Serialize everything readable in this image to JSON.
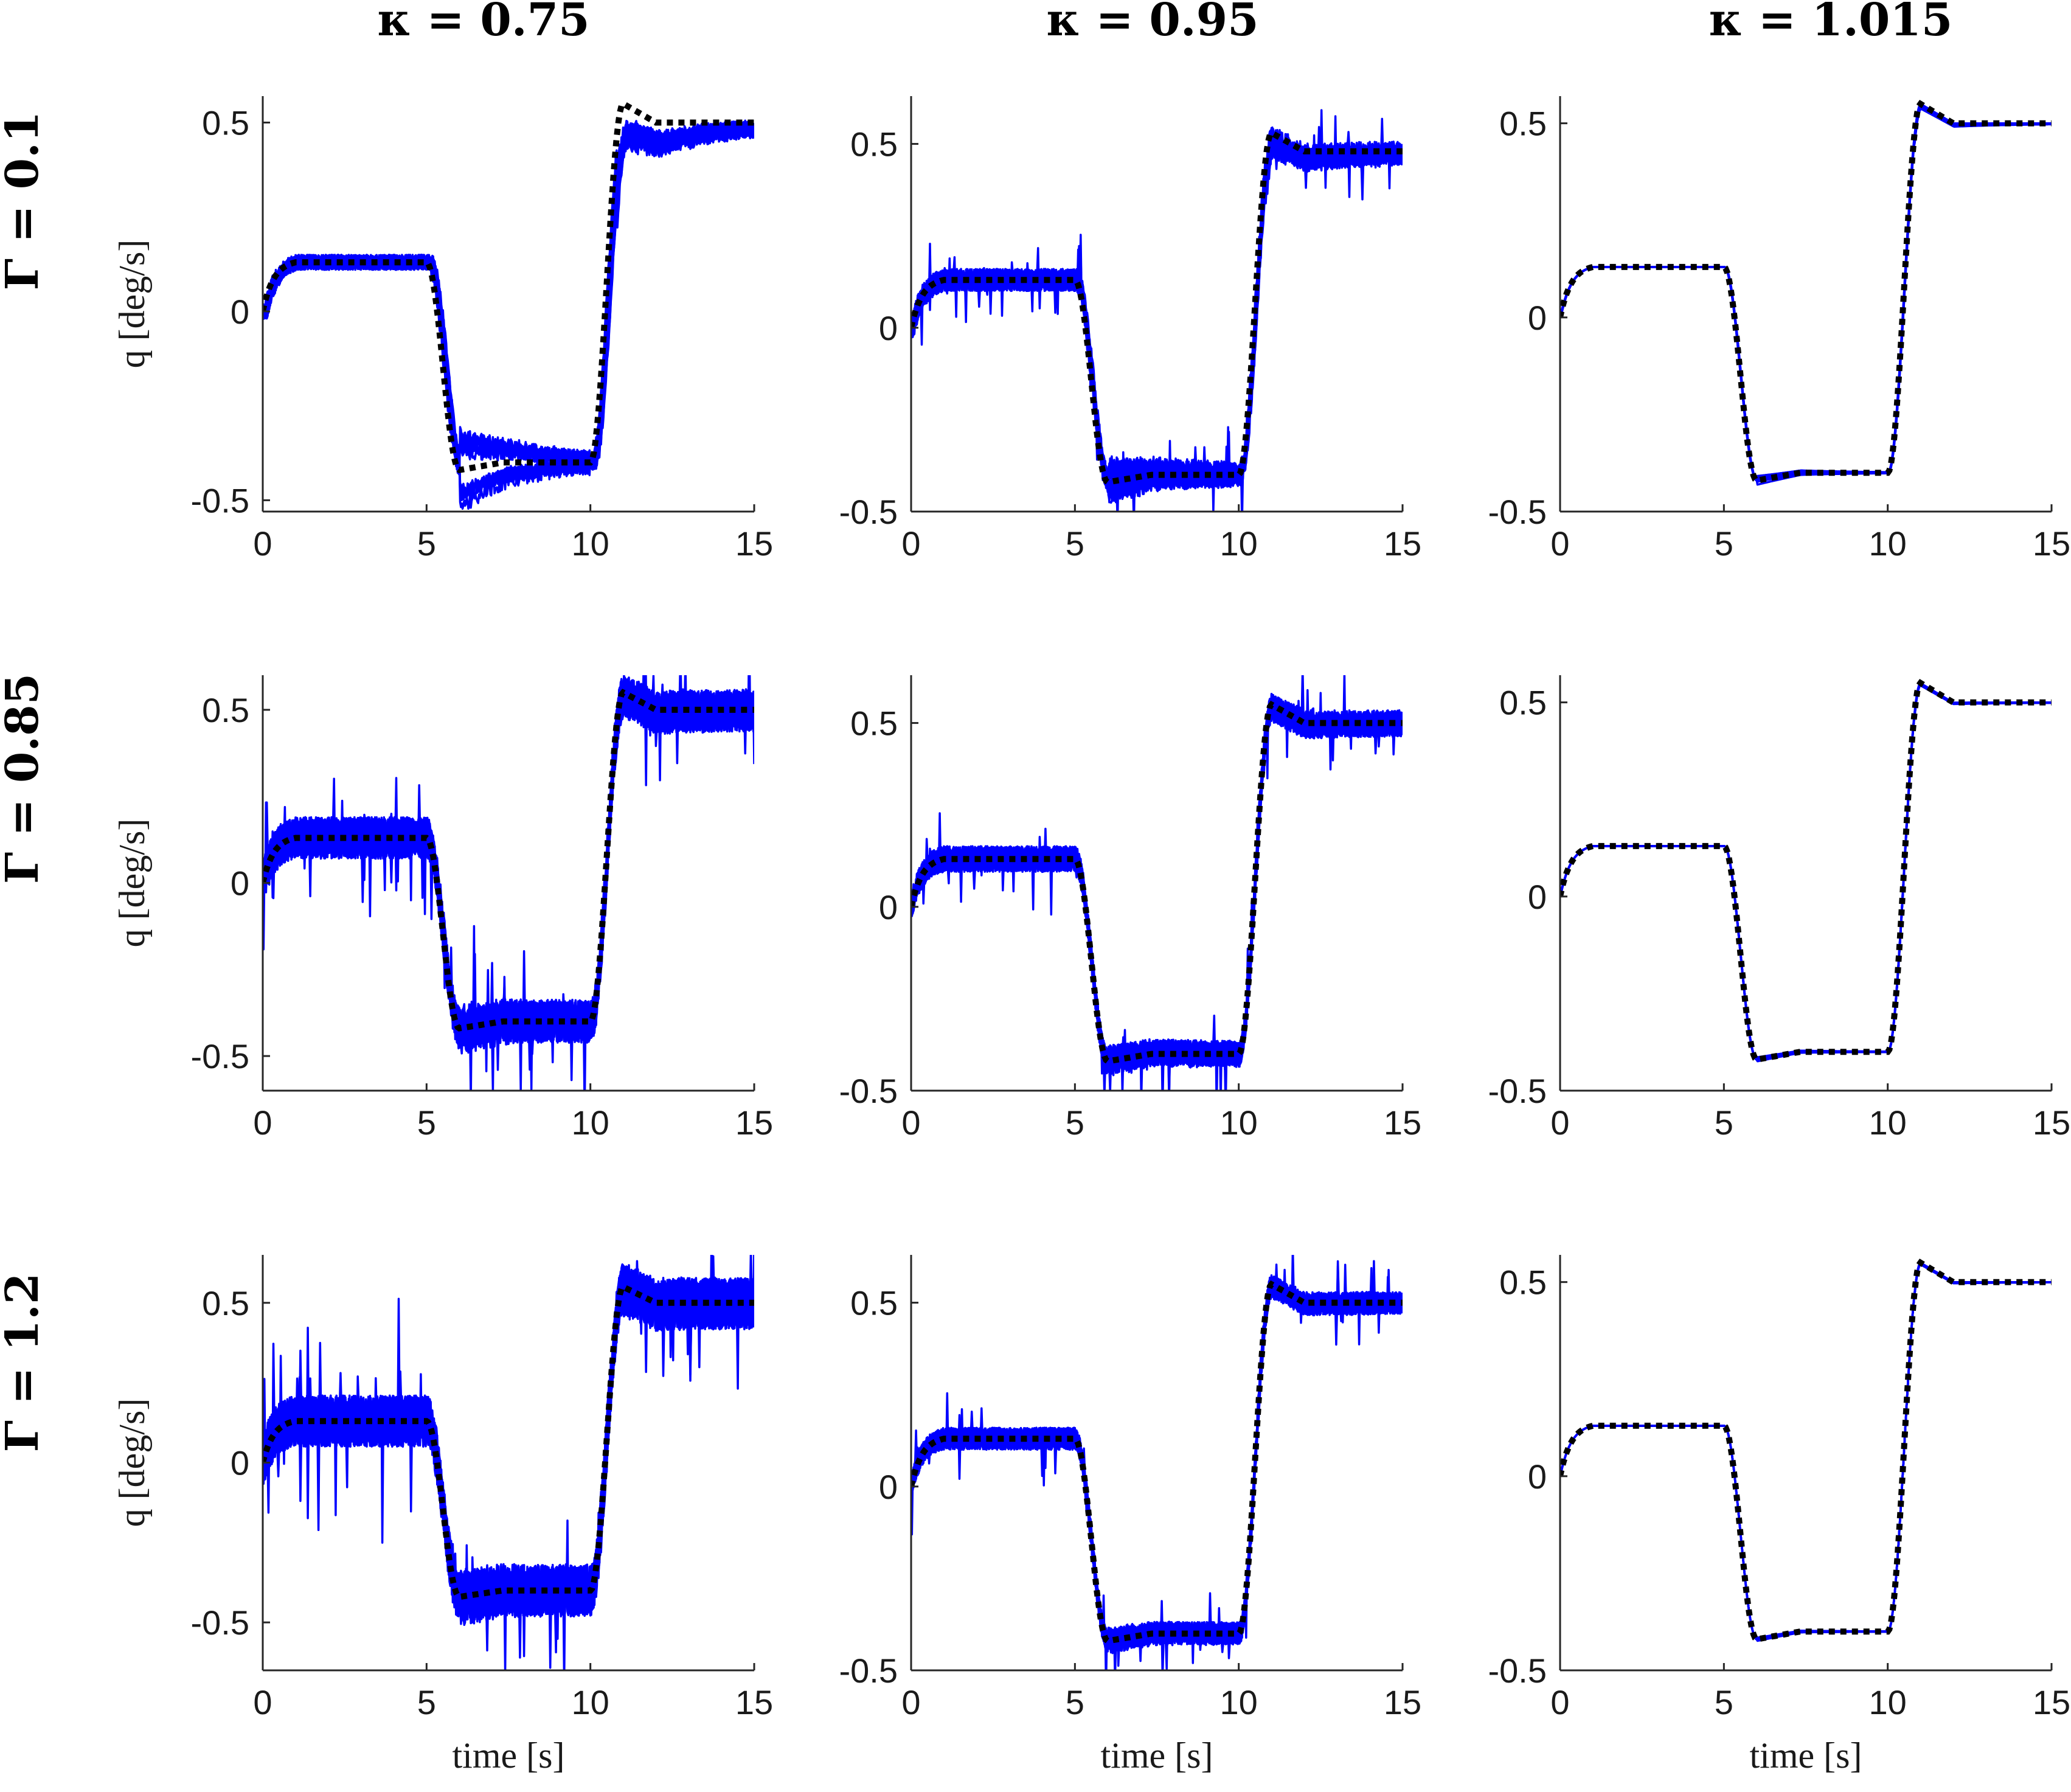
{
  "column_titles": [
    "κ = 0.75",
    "κ = 0.95",
    "κ = 1.015"
  ],
  "row_titles": [
    "Γ = 0.1",
    "Γ = 0.85",
    "Γ = 1.2"
  ],
  "colors": {
    "reference": "#000000",
    "runs": "#0000ff",
    "axis": "#262626"
  },
  "reference": {
    "x": [
      0,
      0.5,
      1,
      5,
      6,
      10,
      11,
      12,
      15
    ],
    "y": [
      0,
      0.1,
      0.13,
      0.13,
      -0.42,
      -0.42,
      0.57,
      0.52,
      0.52
    ],
    "style": "dotted"
  },
  "chart_data": [
    {
      "type": "line",
      "row": 0,
      "col": 0,
      "xlabel": "",
      "ylabel": "q [deg/s]",
      "xlim": [
        0,
        15
      ],
      "ylim": [
        -0.53,
        0.57
      ],
      "xticks": [
        "0",
        "5",
        "10",
        "15"
      ],
      "yticks": [
        "-0.5",
        "0",
        "0.5"
      ],
      "settle_high": 0.5,
      "settle_low": -0.4,
      "noise": 0.02,
      "spread": 0.35,
      "runs": 12
    },
    {
      "type": "line",
      "row": 0,
      "col": 1,
      "xlabel": "",
      "ylabel": "",
      "xlim": [
        0,
        15
      ],
      "ylim": [
        -0.5,
        0.63
      ],
      "xticks": [
        "0",
        "5",
        "10",
        "15"
      ],
      "yticks": [
        "-0.5",
        "0",
        "0.5"
      ],
      "settle_high": 0.48,
      "settle_low": -0.4,
      "noise": 0.03,
      "spread": 0.15,
      "runs": 12
    },
    {
      "type": "line",
      "row": 0,
      "col": 2,
      "xlabel": "",
      "ylabel": "",
      "xlim": [
        0,
        15
      ],
      "ylim": [
        -0.5,
        0.57
      ],
      "xticks": [
        "0",
        "5",
        "10",
        "15"
      ],
      "yticks": [
        "-0.5",
        "0",
        "0.5"
      ],
      "settle_high": 0.5,
      "settle_low": -0.4,
      "noise": 0.0,
      "spread": 0.05,
      "runs": 12
    },
    {
      "type": "line",
      "row": 1,
      "col": 0,
      "xlabel": "",
      "ylabel": "q [deg/s]",
      "xlim": [
        0,
        15
      ],
      "ylim": [
        -0.6,
        0.6
      ],
      "xticks": [
        "0",
        "5",
        "10",
        "15"
      ],
      "yticks": [
        "-0.5",
        "0",
        "0.5"
      ],
      "settle_high": 0.5,
      "settle_low": -0.4,
      "noise": 0.06,
      "spread": 0.06,
      "runs": 12
    },
    {
      "type": "line",
      "row": 1,
      "col": 1,
      "xlabel": "",
      "ylabel": "",
      "xlim": [
        0,
        15
      ],
      "ylim": [
        -0.5,
        0.63
      ],
      "xticks": [
        "0",
        "5",
        "10",
        "15"
      ],
      "yticks": [
        "-0.5",
        "0",
        "0.5"
      ],
      "settle_high": 0.5,
      "settle_low": -0.4,
      "noise": 0.035,
      "spread": 0.04,
      "runs": 12
    },
    {
      "type": "line",
      "row": 1,
      "col": 2,
      "xlabel": "",
      "ylabel": "",
      "xlim": [
        0,
        15
      ],
      "ylim": [
        -0.5,
        0.57
      ],
      "xticks": [
        "0",
        "5",
        "10",
        "15"
      ],
      "yticks": [
        "-0.5",
        "0",
        "0.5"
      ],
      "settle_high": 0.5,
      "settle_low": -0.4,
      "noise": 0.0,
      "spread": 0.02,
      "runs": 12
    },
    {
      "type": "line",
      "row": 2,
      "col": 0,
      "xlabel": "time [s]",
      "ylabel": "q [deg/s]",
      "xlim": [
        0,
        15
      ],
      "ylim": [
        -0.65,
        0.65
      ],
      "xticks": [
        "0",
        "5",
        "10",
        "15"
      ],
      "yticks": [
        "-0.5",
        "0",
        "0.5"
      ],
      "settle_high": 0.5,
      "settle_low": -0.4,
      "noise": 0.08,
      "spread": 0.05,
      "runs": 12
    },
    {
      "type": "line",
      "row": 2,
      "col": 1,
      "xlabel": "time [s]",
      "ylabel": "",
      "xlim": [
        0,
        15
      ],
      "ylim": [
        -0.5,
        0.63
      ],
      "xticks": [
        "0",
        "5",
        "10",
        "15"
      ],
      "yticks": [
        "-0.5",
        "0",
        "0.5"
      ],
      "settle_high": 0.5,
      "settle_low": -0.4,
      "noise": 0.03,
      "spread": 0.03,
      "runs": 12
    },
    {
      "type": "line",
      "row": 2,
      "col": 2,
      "xlabel": "time [s]",
      "ylabel": "",
      "xlim": [
        0,
        15
      ],
      "ylim": [
        -0.5,
        0.57
      ],
      "xticks": [
        "0",
        "5",
        "10",
        "15"
      ],
      "yticks": [
        "-0.5",
        "0",
        "0.5"
      ],
      "settle_high": 0.5,
      "settle_low": -0.4,
      "noise": 0.0,
      "spread": 0.015,
      "runs": 12
    }
  ]
}
